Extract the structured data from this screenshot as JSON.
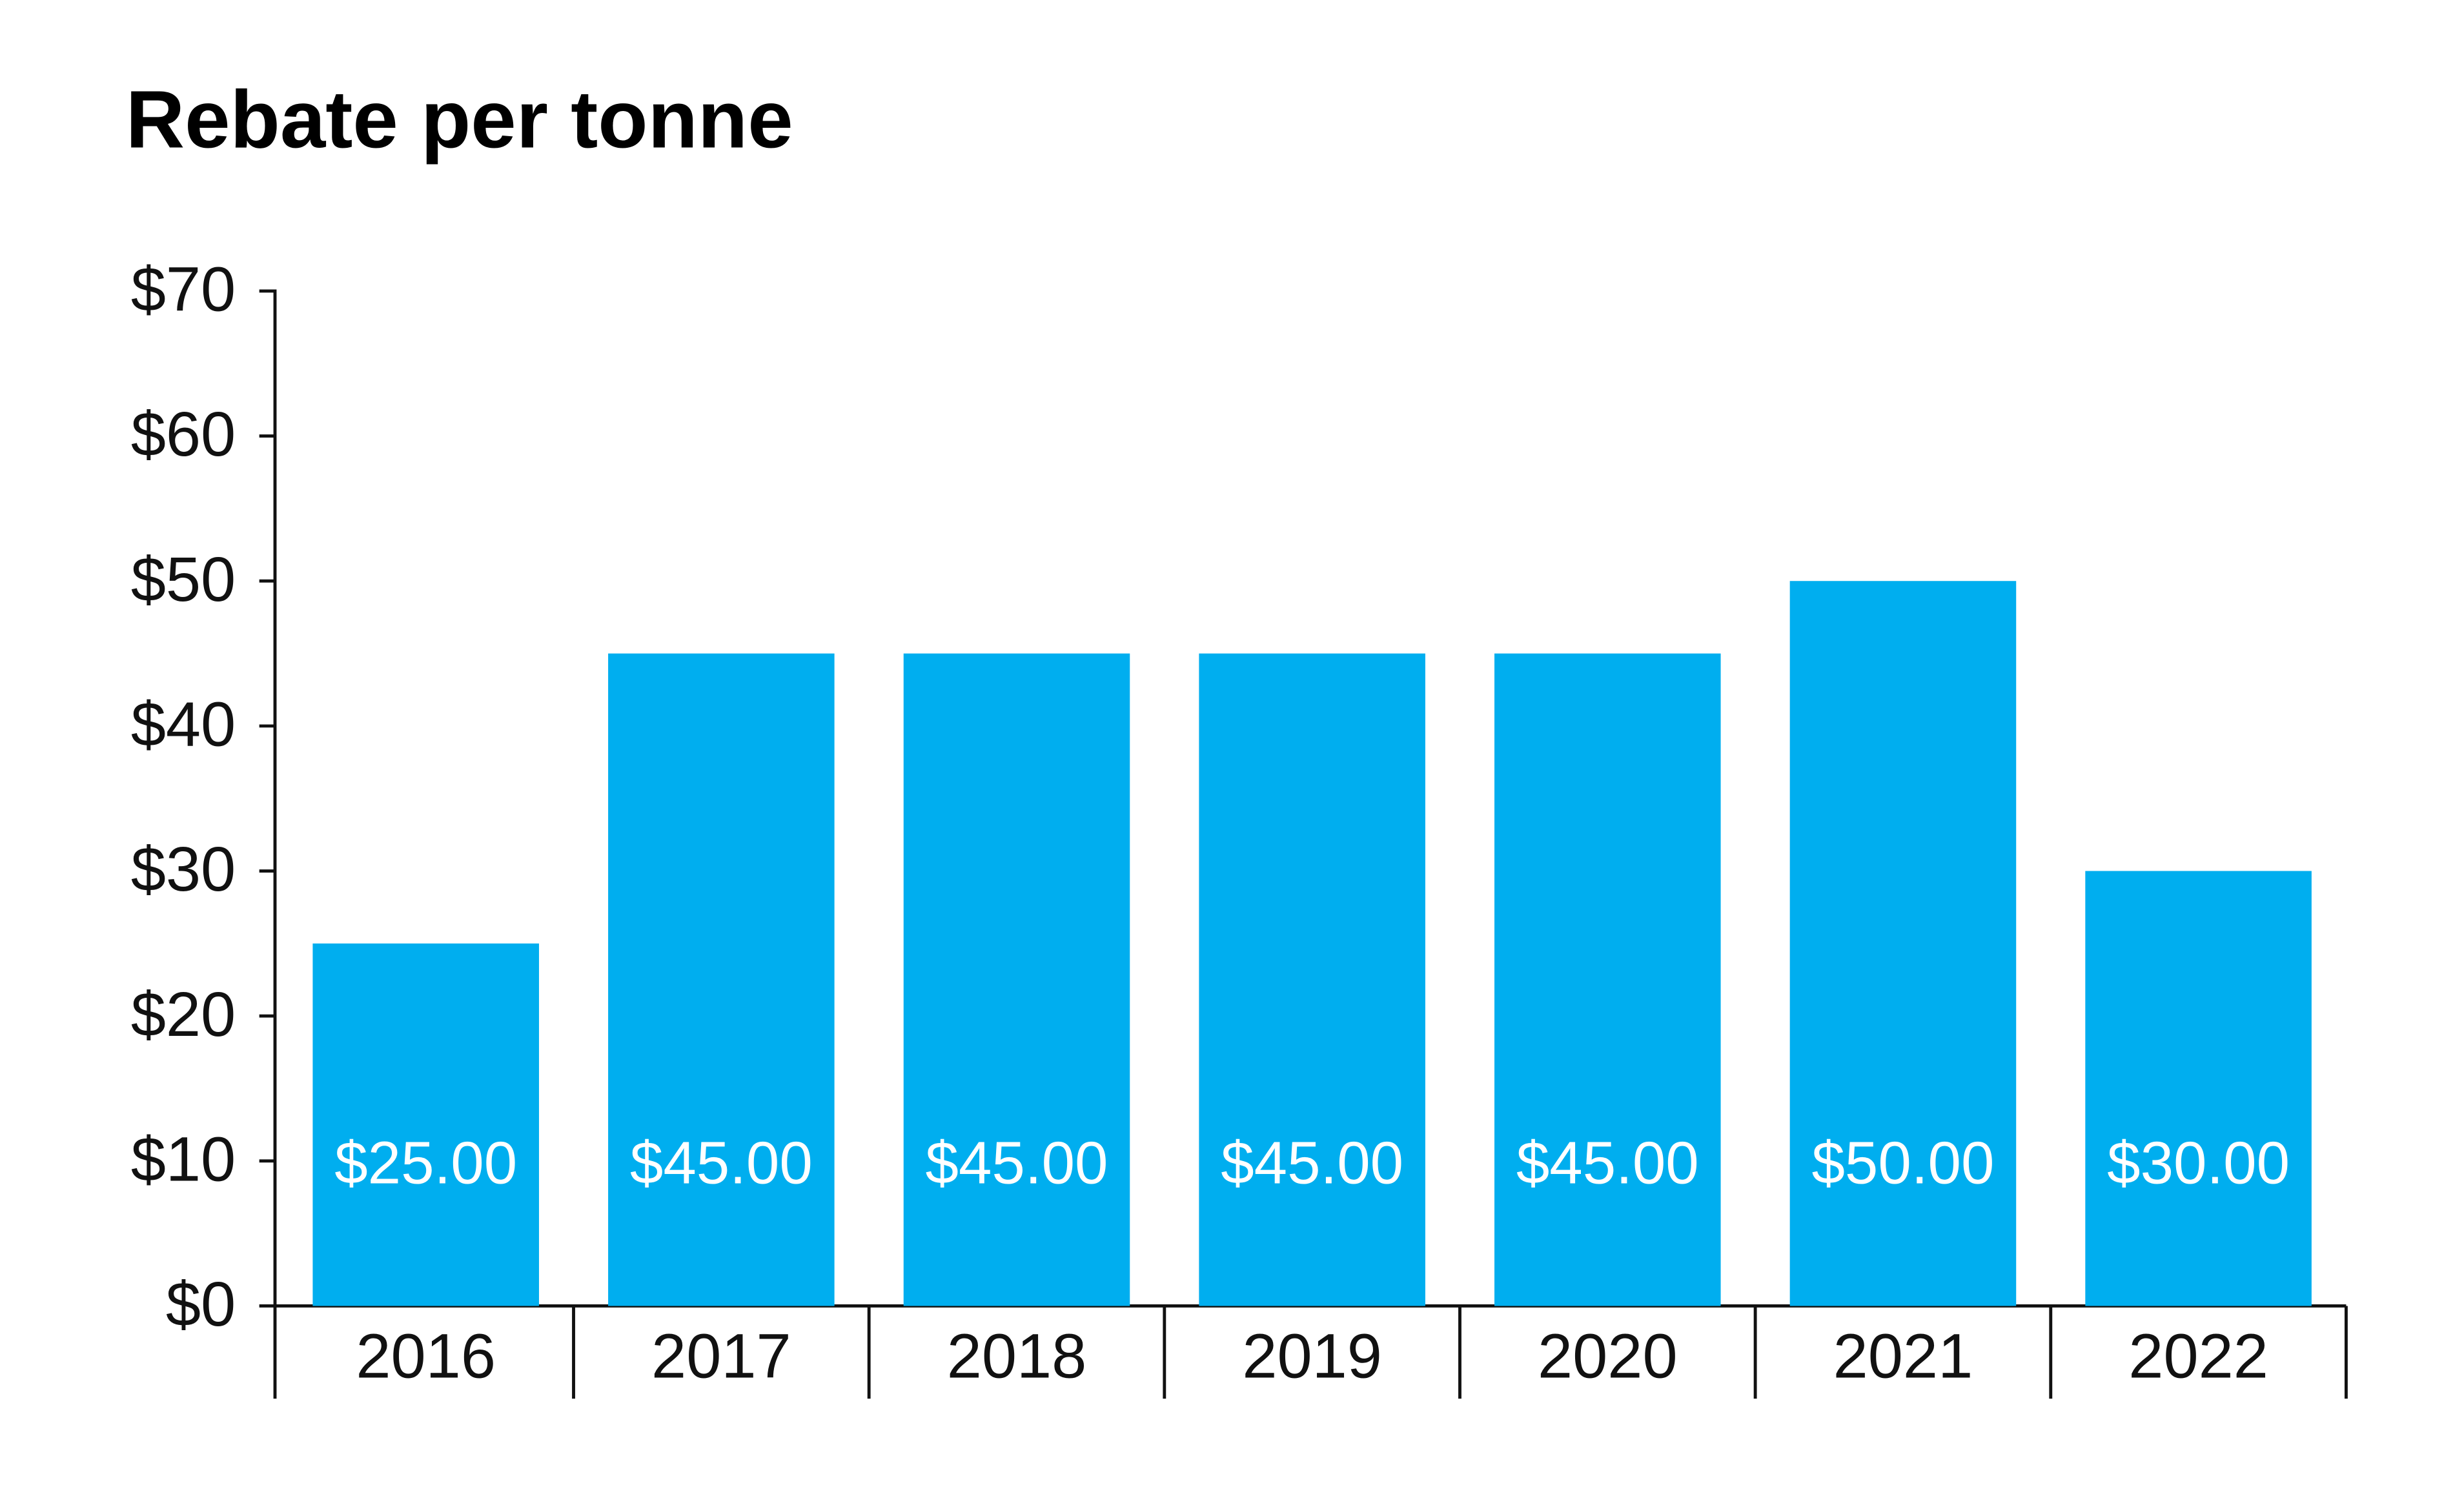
{
  "chart_data": {
    "type": "bar",
    "title": "Rebate per tonne",
    "categories": [
      "2016",
      "2017",
      "2018",
      "2019",
      "2020",
      "2021",
      "2022"
    ],
    "values": [
      25,
      45,
      45,
      45,
      45,
      50,
      30
    ],
    "value_labels": [
      "$25.00",
      "$45.00",
      "$45.00",
      "$45.00",
      "$45.00",
      "$50.00",
      "$30.00"
    ],
    "color": "#00aeef",
    "ylim": [
      0,
      70
    ],
    "yticks": [
      {
        "value": 0,
        "label": "$0"
      },
      {
        "value": 10,
        "label": "$10"
      },
      {
        "value": 20,
        "label": "$20"
      },
      {
        "value": 30,
        "label": "$30"
      },
      {
        "value": 40,
        "label": "$40"
      },
      {
        "value": 50,
        "label": "$50"
      },
      {
        "value": 60,
        "label": "$60"
      },
      {
        "value": 70,
        "label": "$70"
      }
    ]
  }
}
